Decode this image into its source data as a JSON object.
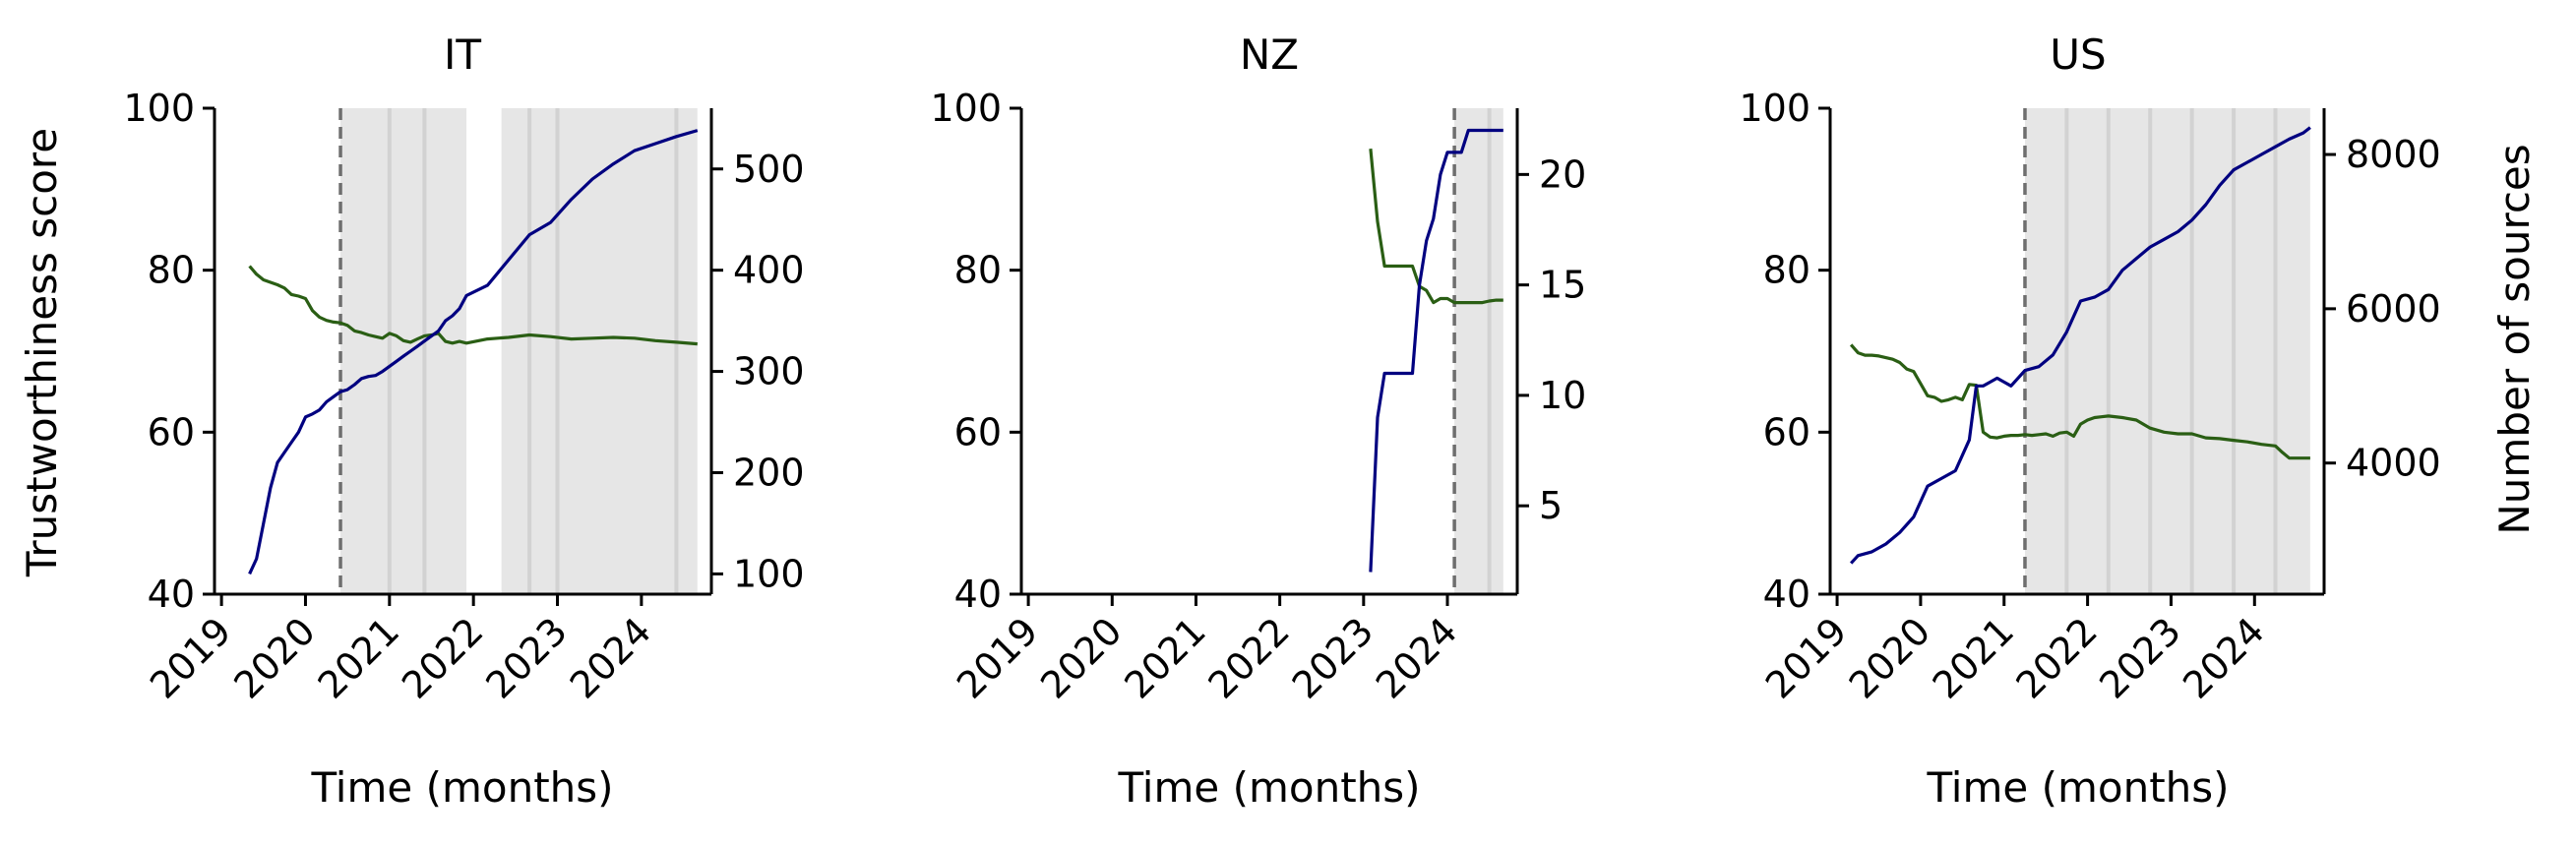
{
  "figure": {
    "ylabel_left": "Trustworthiness score",
    "ylabel_right": "Number of sources",
    "xlabel": "Time (months)"
  },
  "colors": {
    "trust_line": "#2a5e14",
    "sources_line": "#000080",
    "shade": "#e6e6e6",
    "shade_line": "#d2d2d2",
    "marker_line": "#6e6e6e"
  },
  "chart_data": [
    {
      "type": "line",
      "title": "IT",
      "x_axis": {
        "ticks": [
          "2019",
          "2020",
          "2021",
          "2022",
          "2023",
          "2024"
        ],
        "range": [
          "2018-12",
          "2024-11"
        ]
      },
      "y_left": {
        "ylim": [
          40,
          100
        ],
        "ticks": [
          40,
          60,
          80,
          100
        ]
      },
      "y_right": {
        "ylim": [
          80,
          560
        ],
        "ticks": [
          100,
          200,
          300,
          400,
          500
        ]
      },
      "marker_date": "2020-06",
      "shaded_periods": [
        [
          "2020-06",
          "2021-12"
        ],
        [
          "2022-05",
          "2024-09"
        ]
      ],
      "shade_lines": [
        "2021-01",
        "2021-06",
        "2022-09",
        "2023-01",
        "2024-06"
      ],
      "series": [
        {
          "axis": "left",
          "color": "trust_line",
          "points": [
            [
              "2019-05",
              80.5
            ],
            [
              "2019-06",
              79.5
            ],
            [
              "2019-07",
              78.8
            ],
            [
              "2019-08",
              78.5
            ],
            [
              "2019-09",
              78.2
            ],
            [
              "2019-10",
              77.8
            ],
            [
              "2019-11",
              77.0
            ],
            [
              "2019-12",
              76.8
            ],
            [
              "2020-01",
              76.5
            ],
            [
              "2020-02",
              75.0
            ],
            [
              "2020-03",
              74.2
            ],
            [
              "2020-04",
              73.8
            ],
            [
              "2020-05",
              73.6
            ],
            [
              "2020-06",
              73.5
            ],
            [
              "2020-07",
              73.2
            ],
            [
              "2020-08",
              72.5
            ],
            [
              "2020-09",
              72.3
            ],
            [
              "2020-10",
              72.0
            ],
            [
              "2020-11",
              71.8
            ],
            [
              "2020-12",
              71.6
            ],
            [
              "2021-01",
              72.2
            ],
            [
              "2021-02",
              71.9
            ],
            [
              "2021-03",
              71.3
            ],
            [
              "2021-04",
              71.1
            ],
            [
              "2021-05",
              71.5
            ],
            [
              "2021-06",
              71.9
            ],
            [
              "2021-07",
              72.0
            ],
            [
              "2021-08",
              72.2
            ],
            [
              "2021-09",
              71.2
            ],
            [
              "2021-10",
              71.0
            ],
            [
              "2021-11",
              71.2
            ],
            [
              "2021-12",
              71.0
            ],
            [
              "2022-03",
              71.5
            ],
            [
              "2022-06",
              71.7
            ],
            [
              "2022-09",
              72.0
            ],
            [
              "2022-12",
              71.8
            ],
            [
              "2023-03",
              71.5
            ],
            [
              "2023-06",
              71.6
            ],
            [
              "2023-09",
              71.7
            ],
            [
              "2023-12",
              71.6
            ],
            [
              "2024-03",
              71.3
            ],
            [
              "2024-06",
              71.1
            ],
            [
              "2024-09",
              70.9
            ]
          ]
        },
        {
          "axis": "right",
          "color": "sources_line",
          "points": [
            [
              "2019-05",
              100
            ],
            [
              "2019-06",
              115
            ],
            [
              "2019-07",
              150
            ],
            [
              "2019-08",
              185
            ],
            [
              "2019-09",
              210
            ],
            [
              "2019-10",
              220
            ],
            [
              "2019-11",
              230
            ],
            [
              "2019-12",
              240
            ],
            [
              "2020-01",
              255
            ],
            [
              "2020-02",
              258
            ],
            [
              "2020-03",
              262
            ],
            [
              "2020-04",
              270
            ],
            [
              "2020-05",
              275
            ],
            [
              "2020-06",
              280
            ],
            [
              "2020-07",
              282
            ],
            [
              "2020-08",
              287
            ],
            [
              "2020-09",
              293
            ],
            [
              "2020-10",
              295
            ],
            [
              "2020-11",
              296
            ],
            [
              "2020-12",
              300
            ],
            [
              "2021-01",
              305
            ],
            [
              "2021-02",
              310
            ],
            [
              "2021-03",
              315
            ],
            [
              "2021-04",
              320
            ],
            [
              "2021-05",
              325
            ],
            [
              "2021-06",
              330
            ],
            [
              "2021-07",
              335
            ],
            [
              "2021-08",
              340
            ],
            [
              "2021-09",
              350
            ],
            [
              "2021-10",
              355
            ],
            [
              "2021-11",
              362
            ],
            [
              "2021-12",
              375
            ],
            [
              "2022-03",
              385
            ],
            [
              "2022-06",
              410
            ],
            [
              "2022-09",
              435
            ],
            [
              "2022-12",
              447
            ],
            [
              "2023-03",
              470
            ],
            [
              "2023-06",
              490
            ],
            [
              "2023-09",
              505
            ],
            [
              "2023-12",
              518
            ],
            [
              "2024-03",
              525
            ],
            [
              "2024-06",
              532
            ],
            [
              "2024-09",
              538
            ]
          ]
        }
      ]
    },
    {
      "type": "line",
      "title": "NZ",
      "x_axis": {
        "ticks": [
          "2019",
          "2020",
          "2021",
          "2022",
          "2023",
          "2024"
        ],
        "range": [
          "2018-12",
          "2024-11"
        ]
      },
      "y_left": {
        "ylim": [
          40,
          100
        ],
        "ticks": [
          40,
          60,
          80,
          100
        ]
      },
      "y_right": {
        "ylim": [
          1,
          23
        ],
        "ticks": [
          5,
          10,
          15,
          20
        ]
      },
      "marker_date": "2024-02",
      "shaded_periods": [
        [
          "2024-02",
          "2024-09"
        ]
      ],
      "shade_lines": [
        "2024-07"
      ],
      "series": [
        {
          "axis": "left",
          "color": "trust_line",
          "points": [
            [
              "2023-02",
              95.0
            ],
            [
              "2023-03",
              86.0
            ],
            [
              "2023-04",
              80.5
            ],
            [
              "2023-05",
              80.5
            ],
            [
              "2023-06",
              80.5
            ],
            [
              "2023-07",
              80.5
            ],
            [
              "2023-08",
              80.5
            ],
            [
              "2023-09",
              78.0
            ],
            [
              "2023-10",
              77.5
            ],
            [
              "2023-11",
              76.0
            ],
            [
              "2023-12",
              76.5
            ],
            [
              "2024-01",
              76.5
            ],
            [
              "2024-02",
              76.0
            ],
            [
              "2024-03",
              76.0
            ],
            [
              "2024-04",
              76.0
            ],
            [
              "2024-05",
              76.0
            ],
            [
              "2024-06",
              76.0
            ],
            [
              "2024-07",
              76.2
            ],
            [
              "2024-08",
              76.3
            ],
            [
              "2024-09",
              76.3
            ]
          ]
        },
        {
          "axis": "right",
          "color": "sources_line",
          "points": [
            [
              "2023-02",
              2
            ],
            [
              "2023-03",
              9
            ],
            [
              "2023-04",
              11
            ],
            [
              "2023-05",
              11
            ],
            [
              "2023-06",
              11
            ],
            [
              "2023-07",
              11
            ],
            [
              "2023-08",
              11
            ],
            [
              "2023-09",
              15
            ],
            [
              "2023-10",
              17
            ],
            [
              "2023-11",
              18
            ],
            [
              "2023-12",
              20
            ],
            [
              "2024-01",
              21
            ],
            [
              "2024-02",
              21
            ],
            [
              "2024-03",
              21
            ],
            [
              "2024-04",
              22
            ],
            [
              "2024-05",
              22
            ],
            [
              "2024-06",
              22
            ],
            [
              "2024-07",
              22
            ],
            [
              "2024-08",
              22
            ],
            [
              "2024-09",
              22
            ]
          ]
        }
      ]
    },
    {
      "type": "line",
      "title": "US",
      "x_axis": {
        "ticks": [
          "2019",
          "2020",
          "2021",
          "2022",
          "2023",
          "2024"
        ],
        "range": [
          "2018-12",
          "2024-11"
        ]
      },
      "y_left": {
        "ylim": [
          40,
          100
        ],
        "ticks": [
          40,
          60,
          80,
          100
        ]
      },
      "y_right": {
        "ylim": [
          2300,
          8600
        ],
        "ticks": [
          4000,
          6000,
          8000
        ]
      },
      "marker_date": "2021-04",
      "shaded_periods": [
        [
          "2021-04",
          "2024-09"
        ]
      ],
      "shade_lines": [
        "2021-10",
        "2022-04",
        "2022-10",
        "2023-04",
        "2023-10",
        "2024-04"
      ],
      "series": [
        {
          "axis": "left",
          "color": "trust_line",
          "points": [
            [
              "2019-03",
              70.8
            ],
            [
              "2019-04",
              69.8
            ],
            [
              "2019-05",
              69.5
            ],
            [
              "2019-06",
              69.5
            ],
            [
              "2019-07",
              69.4
            ],
            [
              "2019-08",
              69.2
            ],
            [
              "2019-09",
              69.0
            ],
            [
              "2019-10",
              68.6
            ],
            [
              "2019-11",
              67.8
            ],
            [
              "2019-12",
              67.5
            ],
            [
              "2020-01",
              66.0
            ],
            [
              "2020-02",
              64.5
            ],
            [
              "2020-03",
              64.3
            ],
            [
              "2020-04",
              63.8
            ],
            [
              "2020-05",
              64.0
            ],
            [
              "2020-06",
              64.3
            ],
            [
              "2020-07",
              64.0
            ],
            [
              "2020-08",
              65.9
            ],
            [
              "2020-09",
              65.8
            ],
            [
              "2020-10",
              60.0
            ],
            [
              "2020-11",
              59.4
            ],
            [
              "2020-12",
              59.3
            ],
            [
              "2021-01",
              59.5
            ],
            [
              "2021-02",
              59.6
            ],
            [
              "2021-03",
              59.6
            ],
            [
              "2021-04",
              59.7
            ],
            [
              "2021-05",
              59.6
            ],
            [
              "2021-06",
              59.7
            ],
            [
              "2021-07",
              59.8
            ],
            [
              "2021-08",
              59.5
            ],
            [
              "2021-09",
              59.9
            ],
            [
              "2021-10",
              60.0
            ],
            [
              "2021-11",
              59.5
            ],
            [
              "2021-12",
              61.0
            ],
            [
              "2022-01",
              61.5
            ],
            [
              "2022-02",
              61.8
            ],
            [
              "2022-03",
              61.9
            ],
            [
              "2022-04",
              62.0
            ],
            [
              "2022-06",
              61.8
            ],
            [
              "2022-08",
              61.5
            ],
            [
              "2022-10",
              60.5
            ],
            [
              "2022-12",
              60.0
            ],
            [
              "2023-02",
              59.8
            ],
            [
              "2023-04",
              59.8
            ],
            [
              "2023-06",
              59.3
            ],
            [
              "2023-08",
              59.2
            ],
            [
              "2023-10",
              59.0
            ],
            [
              "2023-12",
              58.8
            ],
            [
              "2024-02",
              58.5
            ],
            [
              "2024-04",
              58.3
            ],
            [
              "2024-05",
              57.5
            ],
            [
              "2024-06",
              56.8
            ],
            [
              "2024-09",
              56.8
            ]
          ]
        },
        {
          "axis": "right",
          "color": "sources_line",
          "points": [
            [
              "2019-03",
              2700
            ],
            [
              "2019-04",
              2800
            ],
            [
              "2019-06",
              2850
            ],
            [
              "2019-08",
              2950
            ],
            [
              "2019-10",
              3100
            ],
            [
              "2019-12",
              3300
            ],
            [
              "2020-02",
              3700
            ],
            [
              "2020-04",
              3800
            ],
            [
              "2020-06",
              3900
            ],
            [
              "2020-08",
              4300
            ],
            [
              "2020-09",
              5000
            ],
            [
              "2020-10",
              5000
            ],
            [
              "2020-11",
              5050
            ],
            [
              "2020-12",
              5100
            ],
            [
              "2021-01",
              5050
            ],
            [
              "2021-02",
              5000
            ],
            [
              "2021-04",
              5200
            ],
            [
              "2021-06",
              5250
            ],
            [
              "2021-08",
              5400
            ],
            [
              "2021-10",
              5700
            ],
            [
              "2021-12",
              6100
            ],
            [
              "2022-02",
              6150
            ],
            [
              "2022-04",
              6250
            ],
            [
              "2022-06",
              6500
            ],
            [
              "2022-08",
              6650
            ],
            [
              "2022-10",
              6800
            ],
            [
              "2022-12",
              6900
            ],
            [
              "2023-02",
              7000
            ],
            [
              "2023-04",
              7150
            ],
            [
              "2023-06",
              7350
            ],
            [
              "2023-08",
              7600
            ],
            [
              "2023-10",
              7800
            ],
            [
              "2023-12",
              7900
            ],
            [
              "2024-02",
              8000
            ],
            [
              "2024-04",
              8100
            ],
            [
              "2024-06",
              8200
            ],
            [
              "2024-08",
              8280
            ],
            [
              "2024-09",
              8350
            ]
          ]
        }
      ]
    }
  ]
}
